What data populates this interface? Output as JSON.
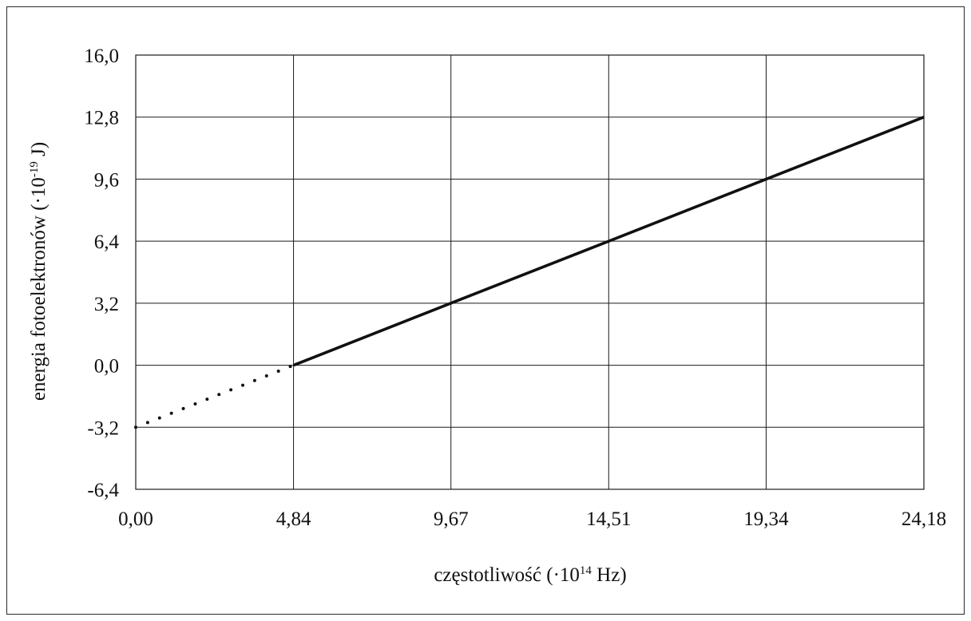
{
  "chart_data": {
    "type": "line",
    "xlabel": {
      "prefix": "częstotliwość (·10",
      "exp": "14",
      "suffix": " Hz)"
    },
    "ylabel": {
      "prefix": "energia fotoelektronów (·10",
      "exp": "-19",
      "suffix": " J)"
    },
    "x_ticks": [
      "0,00",
      "4,84",
      "9,67",
      "14,51",
      "19,34",
      "24,18"
    ],
    "y_ticks": [
      "16,0",
      "12,8",
      "9,6",
      "6,4",
      "3,2",
      "0,0",
      "-3,2",
      "-6,4"
    ],
    "xlim": [
      0,
      24.18
    ],
    "ylim": [
      -6.4,
      16.0
    ],
    "grid": true,
    "series": [
      {
        "style": "dotted",
        "x": [
          0.0,
          4.84
        ],
        "y": [
          -3.2,
          0.0
        ]
      },
      {
        "style": "solid",
        "x": [
          4.84,
          9.67,
          14.51,
          19.34,
          24.18
        ],
        "y": [
          0.0,
          3.2,
          6.4,
          9.6,
          12.8
        ]
      }
    ]
  }
}
